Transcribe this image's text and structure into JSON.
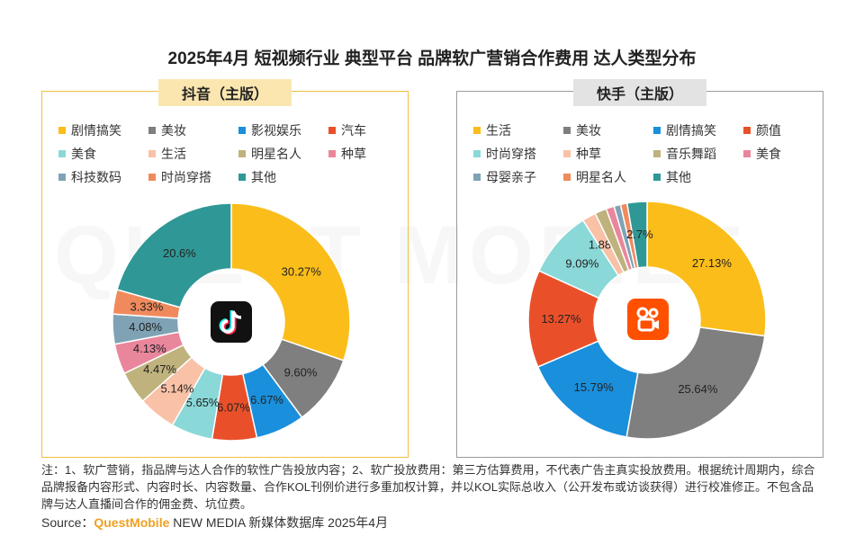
{
  "title": "2025年4月 短视频行业 典型平台 品牌软广营销合作费用 达人类型分布",
  "watermark": "QUEST MOBILE",
  "note": "注：1、软广营销，指品牌与达人合作的软性广告投放内容；2、软广投放费用：第三方估算费用，不代表广告主真实投放费用。根据统计周期内，综合品牌报备内容形式、内容时长、内容数量、合作KOL刊例价进行多重加权计算，并以KOL实际总收入（公开发布或访谈获得）进行校准修正。不包含品牌与达人直播间合作的佣金费、坑位费。",
  "source": {
    "prefix": "Source：",
    "brand": "QuestMobile",
    "suffix": " NEW MEDIA 新媒体数据库 2025年4月"
  },
  "chart_data": [
    {
      "type": "pie",
      "title": "抖音（主版）",
      "icon": "douyin-logo",
      "series": [
        {
          "label": "剧情搞笑",
          "value": 30.27,
          "display": "30.27%",
          "color": "#fbbd1a"
        },
        {
          "label": "美妆",
          "value": 9.6,
          "display": "9.60%",
          "color": "#7f7f7f"
        },
        {
          "label": "影视娱乐",
          "value": 6.67,
          "display": "6.67%",
          "color": "#1a8fdc"
        },
        {
          "label": "汽车",
          "value": 6.07,
          "display": "6.07%",
          "color": "#e9502a"
        },
        {
          "label": "美食",
          "value": 5.65,
          "display": "5.65%",
          "color": "#8ad8d8"
        },
        {
          "label": "生活",
          "value": 5.14,
          "display": "5.14%",
          "color": "#f9c1a6"
        },
        {
          "label": "明星名人",
          "value": 4.47,
          "display": "4.47%",
          "color": "#bfb27c"
        },
        {
          "label": "种草",
          "value": 4.13,
          "display": "4.13%",
          "color": "#e9869c"
        },
        {
          "label": "科技数码",
          "value": 4.08,
          "display": "4.08%",
          "color": "#7fa3b5"
        },
        {
          "label": "时尚穿搭",
          "value": 3.33,
          "display": "3.33%",
          "color": "#f08a5d"
        },
        {
          "label": "其他",
          "value": 20.6,
          "display": "20.6%",
          "color": "#2f9896"
        }
      ]
    },
    {
      "type": "pie",
      "title": "快手（主版）",
      "icon": "kuaishou-logo",
      "series": [
        {
          "label": "生活",
          "value": 27.13,
          "display": "27.13%",
          "color": "#fbbd1a"
        },
        {
          "label": "美妆",
          "value": 25.64,
          "display": "25.64%",
          "color": "#7f7f7f"
        },
        {
          "label": "剧情搞笑",
          "value": 15.79,
          "display": "15.79%",
          "color": "#1a8fdc"
        },
        {
          "label": "颜值",
          "value": 13.27,
          "display": "13.27%",
          "color": "#e9502a"
        },
        {
          "label": "时尚穿搭",
          "value": 9.09,
          "display": "9.09%",
          "color": "#8ad8d8"
        },
        {
          "label": "种草",
          "value": 1.88,
          "display": "1.88%",
          "color": "#f9c1a6"
        },
        {
          "label": "音乐舞蹈",
          "value": 1.6,
          "display": "",
          "color": "#bfb27c"
        },
        {
          "label": "美食",
          "value": 1.1,
          "display": "",
          "color": "#e9869c"
        },
        {
          "label": "母婴亲子",
          "value": 0.9,
          "display": "",
          "color": "#7fa3b5"
        },
        {
          "label": "明星名人",
          "value": 0.9,
          "display": "",
          "color": "#f08a5d"
        },
        {
          "label": "其他",
          "value": 2.7,
          "display": "2.7%",
          "color": "#2f9896"
        }
      ]
    }
  ]
}
